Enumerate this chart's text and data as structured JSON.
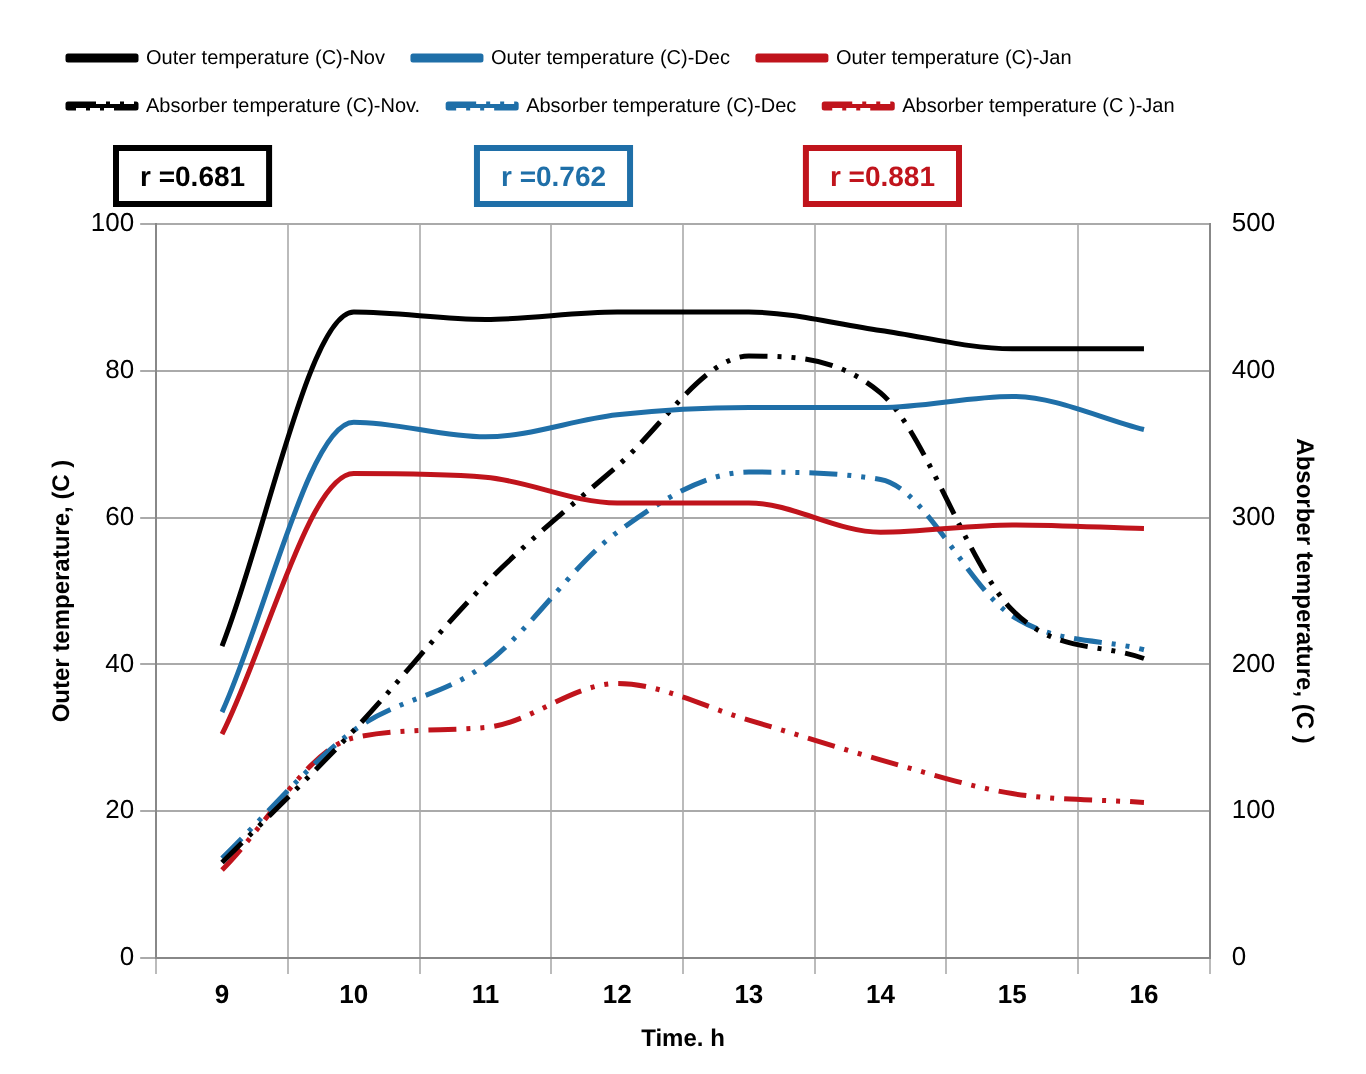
{
  "chart_data": {
    "type": "line",
    "xlabel": "Time. h",
    "ylabel": "Outer temperature, (C )",
    "y2label": "Absorber temperature, (C )",
    "categories": [
      "9",
      "10",
      "11",
      "12",
      "13",
      "14",
      "15",
      "16"
    ],
    "series": [
      {
        "name": "Outer temperature (C)-Nov",
        "color": "#000000",
        "line_style": "solid",
        "values": [
          42.5,
          88,
          87,
          88,
          88,
          85.5,
          83,
          83
        ]
      },
      {
        "name": "Outer temperature (C)-Dec",
        "color": "#1f6fa8",
        "line_style": "solid",
        "values": [
          33.5,
          73,
          71,
          74,
          75,
          75,
          76.5,
          72
        ]
      },
      {
        "name": "Outer temperature (C)-Jan",
        "color": "#c0141c",
        "line_style": "solid",
        "values": [
          30.5,
          66,
          65.5,
          62,
          62,
          58,
          59,
          58.5
        ]
      },
      {
        "name": "Absorber temperature (C)-Nov.",
        "color": "#000000",
        "line_style": "dashed",
        "axis": "y2",
        "values": [
          65,
          155,
          255,
          335,
          410,
          385,
          237,
          204
        ]
      },
      {
        "name": "Absorber temperature (C)-Dec",
        "color": "#1f6fa8",
        "line_style": "dashed",
        "axis": "y2",
        "values": [
          68,
          155,
          200,
          290,
          331,
          326,
          233,
          210
        ]
      },
      {
        "name": "Absorber temperature (C )-Jan",
        "color": "#c0141c",
        "line_style": "dashed",
        "axis": "y2",
        "values": [
          60,
          150,
          157,
          187,
          162,
          135,
          112,
          106
        ]
      }
    ],
    "ylim": [
      0,
      100
    ],
    "yticks": [
      0,
      20,
      40,
      60,
      80,
      100
    ],
    "y2lim": [
      0,
      500
    ],
    "y2ticks": [
      0,
      100,
      200,
      300,
      400,
      500
    ],
    "annotations": [
      "r =0.681",
      "r =0.762",
      "r =0.881"
    ],
    "grid": true,
    "legend": "top",
    "marker": "none"
  }
}
